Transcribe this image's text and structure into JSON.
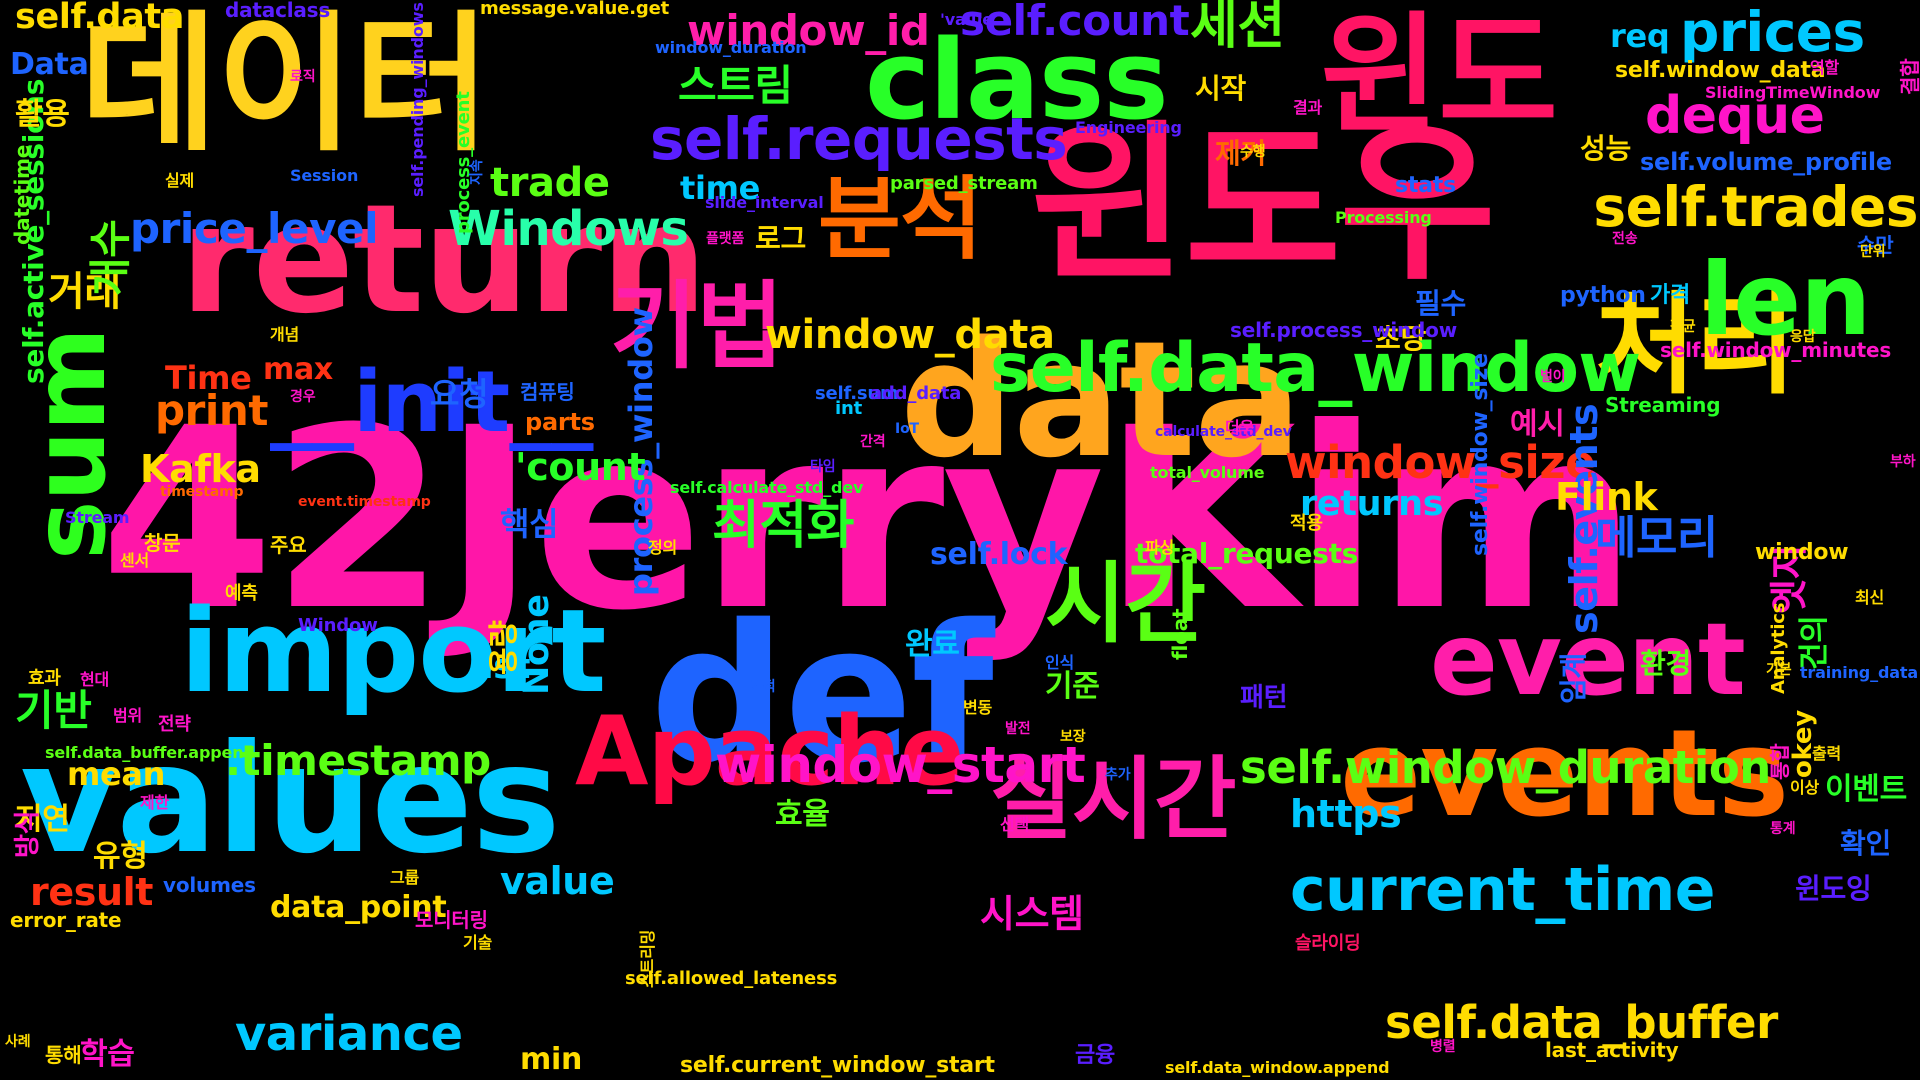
{
  "cloud": {
    "words": [
      {
        "text": "42JerryKim",
        "color": "#ff16a8"
      },
      {
        "text": "데이터",
        "color": "#ffd21e"
      },
      {
        "text": "윈도우",
        "color": "#ff1464"
      },
      {
        "text": "윈도",
        "color": "#ff1464"
      },
      {
        "text": "return",
        "color": "#ff2a6d"
      },
      {
        "text": "data",
        "color": "#ffa51e"
      },
      {
        "text": "def",
        "color": "#1e64ff"
      },
      {
        "text": "values",
        "color": "#00c8ff"
      },
      {
        "text": "events",
        "color": "#ff6a00"
      },
      {
        "text": "import",
        "color": "#00c8ff"
      },
      {
        "text": "class",
        "color": "#28ff28"
      },
      {
        "text": "sum",
        "color": "#2eff1e"
      },
      {
        "text": "처리",
        "color": "#ffdc00"
      },
      {
        "text": "Apache",
        "color": "#ff0a46"
      },
      {
        "text": "event",
        "color": "#ff1eaa"
      },
      {
        "text": "len",
        "color": "#28ff28"
      },
      {
        "text": "분석",
        "color": "#ff6a00"
      },
      {
        "text": "실시간",
        "color": "#ff1eaa"
      },
      {
        "text": "시간",
        "color": "#5aff14"
      },
      {
        "text": "기법",
        "color": "#ff1eaa"
      },
      {
        "text": "__init__",
        "color": "#1e3cff"
      },
      {
        "text": "self.data_window",
        "color": "#28ff28"
      },
      {
        "text": "self.requests",
        "color": "#5a1eff"
      },
      {
        "text": "current_time",
        "color": "#00c8ff"
      },
      {
        "text": "self.trades",
        "color": "#ffdc00"
      },
      {
        "text": "window_start",
        "color": "#ff14c8"
      },
      {
        "text": "self.data_buffer",
        "color": "#ffdc00"
      },
      {
        "text": "self.window_duration",
        "color": "#5aff14"
      },
      {
        "text": "prices",
        "color": "#00c8ff"
      },
      {
        "text": "deque",
        "color": "#ff14c8"
      },
      {
        "text": "variance",
        "color": "#00c8ff"
      },
      {
        "text": "Windows",
        "color": "#28ffaa"
      },
      {
        "text": "window_id",
        "color": "#ff1eaa"
      },
      {
        "text": "self.count",
        "color": "#5a1eff"
      },
      {
        "text": "세션",
        "color": "#5aff14"
      },
      {
        "text": "최적화",
        "color": "#28ff28"
      },
      {
        "text": "window_size",
        "color": "#ff3214"
      },
      {
        "text": "window_data",
        "color": "#ffdc00"
      },
      {
        "text": ".timestamp",
        "color": "#5aff14"
      },
      {
        "text": "price_level",
        "color": "#1e64ff"
      },
      {
        "text": "self.data",
        "color": "#ffdc00"
      },
      {
        "text": "메모리",
        "color": "#1e64ff"
      },
      {
        "text": "self.events",
        "color": "#1e64ff"
      },
      {
        "text": "process_window",
        "color": "#1e64ff"
      },
      {
        "text": "self.active_sessions",
        "color": "#28ff28"
      },
      {
        "text": "Kafka",
        "color": "#ffdc00"
      },
      {
        "text": "Flink",
        "color": "#ffdc00"
      },
      {
        "text": "print",
        "color": "#ff6a00"
      },
      {
        "text": "'count",
        "color": "#28ff28"
      },
      {
        "text": "trade",
        "color": "#5aff14"
      },
      {
        "text": "스트림",
        "color": "#28ff28"
      },
      {
        "text": "거래",
        "color": "#ffdc00"
      },
      {
        "text": "개수",
        "color": "#5aff14"
      },
      {
        "text": "기반",
        "color": "#28ff28"
      },
      {
        "text": "returns",
        "color": "#00c8ff"
      },
      {
        "text": "https",
        "color": "#00c8ff"
      },
      {
        "text": "result",
        "color": "#ff3214"
      },
      {
        "text": "value",
        "color": "#00c8ff"
      },
      {
        "text": "data_point",
        "color": "#ffdc00"
      },
      {
        "text": "시스템",
        "color": "#ff14c8"
      },
      {
        "text": "mean",
        "color": "#ffdc00"
      },
      {
        "text": "list",
        "color": "#00c8ff"
      },
      {
        "text": "None",
        "color": "#00c8ff"
      },
      {
        "text": "self.lock",
        "color": "#1e64ff"
      },
      {
        "text": "total_requests",
        "color": "#5aff14"
      },
      {
        "text": "time",
        "color": "#00c8ff"
      },
      {
        "text": "max",
        "color": "#ff3214"
      },
      {
        "text": "Time",
        "color": "#ff3214"
      },
      {
        "text": "req",
        "color": "#00c8ff"
      },
      {
        "text": "Data",
        "color": "#1e64ff"
      },
      {
        "text": "핵심",
        "color": "#1e64ff"
      },
      {
        "text": "요청",
        "color": "#1e64ff"
      },
      {
        "text": "완료",
        "color": "#00c8ff"
      },
      {
        "text": "기준",
        "color": "#5aff14"
      },
      {
        "text": "효율",
        "color": "#5aff14"
      },
      {
        "text": "학습",
        "color": "#ff14c8"
      },
      {
        "text": "지연",
        "color": "#ffdc00"
      },
      {
        "text": "유형",
        "color": "#ffdc00"
      },
      {
        "text": "min",
        "color": "#ffdc00"
      },
      {
        "text": "성능",
        "color": "#ffdc00"
      },
      {
        "text": "이벤트",
        "color": "#28ff28"
      },
      {
        "text": "확인",
        "color": "#1e64ff"
      },
      {
        "text": "윈도잉",
        "color": "#5a1eff"
      },
      {
        "text": "환경",
        "color": "#5aff14"
      },
      {
        "text": "엣지",
        "color": "#ff14c8"
      },
      {
        "text": "예시",
        "color": "#ff1eaa"
      },
      {
        "text": "필수",
        "color": "#1e64ff"
      },
      {
        "text": "초당",
        "color": "#ffdc00"
      },
      {
        "text": "시작",
        "color": "#ffdc00"
      },
      {
        "text": "제거",
        "color": "#ff6a00"
      },
      {
        "text": "로그",
        "color": "#ffdc00"
      },
      {
        "text": "활용",
        "color": "#ffdc00"
      },
      {
        "text": "okey",
        "color": "#ffdc00"
      },
      {
        "text": "window",
        "color": "#ffdc00"
      },
      {
        "text": "건의",
        "color": "#28ff28"
      },
      {
        "text": "임계",
        "color": "#1e64ff"
      },
      {
        "text": "용량",
        "color": "#ffdc00"
      },
      {
        "text": "패턴",
        "color": "#5a1eff"
      },
      {
        "text": "python",
        "color": "#1e64ff"
      },
      {
        "text": "가격",
        "color": "#00c8ff"
      },
      {
        "text": "self.volume_profile",
        "color": "#1e64ff"
      },
      {
        "text": "self.window_data",
        "color": "#ffdc00"
      },
      {
        "text": "self.window_minutes",
        "color": "#ff14c8"
      },
      {
        "text": "self.process_window",
        "color": "#5a1eff"
      },
      {
        "text": "self.window_size",
        "color": "#1e64ff"
      },
      {
        "text": "self.data_buffer.append",
        "color": "#5aff14"
      },
      {
        "text": "self.current_window_start",
        "color": "#ffdc00"
      },
      {
        "text": "self.data_window.append",
        "color": "#ffdc00"
      },
      {
        "text": "self.allowed_lateness",
        "color": "#ffdc00"
      },
      {
        "text": "self.calculate_std_dev",
        "color": "#28ff28"
      },
      {
        "text": "self.pending_windows",
        "color": "#5a1eff"
      },
      {
        "text": "self.sum",
        "color": "#1e64ff"
      },
      {
        "text": "total_volume",
        "color": "#5aff14"
      },
      {
        "text": "last_activity",
        "color": "#ffdc00"
      },
      {
        "text": "error_rate",
        "color": "#ffdc00"
      },
      {
        "text": "volumes",
        "color": "#1e64ff"
      },
      {
        "text": "parts",
        "color": "#ff6a00"
      },
      {
        "text": "float",
        "color": "#5aff14"
      },
      {
        "text": "int",
        "color": "#00c8ff"
      },
      {
        "text": "add_data",
        "color": "#5a1eff"
      },
      {
        "text": "datetime",
        "color": "#5aff14"
      },
      {
        "text": "dataclass",
        "color": "#5a1eff"
      },
      {
        "text": "message.value.get",
        "color": "#ffdc00"
      },
      {
        "text": "window_duration",
        "color": "#1e64ff"
      },
      {
        "text": "SlidingTimeWindow",
        "color": "#ff14c8"
      },
      {
        "text": "Engineering",
        "color": "#5a1eff"
      },
      {
        "text": "Session",
        "color": "#1e64ff"
      },
      {
        "text": "process_event",
        "color": "#28ff28"
      },
      {
        "text": "parsed_stream",
        "color": "#5aff14"
      },
      {
        "text": "slide_interval",
        "color": "#5a1eff"
      },
      {
        "text": "Processing",
        "color": "#5aff14"
      },
      {
        "text": "calculate_std_dev",
        "color": "#5a1eff"
      },
      {
        "text": "event.timestamp",
        "color": "#ff3214"
      },
      {
        "text": "Stream",
        "color": "#5a1eff"
      },
      {
        "text": "Window",
        "color": "#5a1eff"
      },
      {
        "text": "Streaming",
        "color": "#28ff28"
      },
      {
        "text": "training_data",
        "color": "#1e64ff"
      },
      {
        "text": "Analytics",
        "color": "#ffdc00"
      },
      {
        "text": "timestamp",
        "color": "#ff6a00"
      },
      {
        "text": "IoT",
        "color": "#1e64ff"
      },
      {
        "text": "'value",
        "color": "#5a1eff"
      },
      {
        "text": "stats",
        "color": "#1e64ff"
      },
      {
        "text": "수만",
        "color": "#1e64ff"
      },
      {
        "text": "통해",
        "color": "#ffdc00"
      },
      {
        "text": "결과",
        "color": "#ff14c8"
      },
      {
        "text": "적용",
        "color": "#ffdc00"
      },
      {
        "text": "응답",
        "color": "#ffdc00"
      },
      {
        "text": "실제",
        "color": "#ffdc00"
      },
      {
        "text": "수행",
        "color": "#ffdc00"
      },
      {
        "text": "역할",
        "color": "#ff14c8"
      },
      {
        "text": "개념",
        "color": "#ffdc00"
      },
      {
        "text": "경우",
        "color": "#ff14c8"
      },
      {
        "text": "컴퓨팅",
        "color": "#1e64ff"
      },
      {
        "text": "파싱",
        "color": "#ffdc00"
      },
      {
        "text": "더욱",
        "color": "#ff14c8"
      },
      {
        "text": "간격",
        "color": "#ff14c8"
      },
      {
        "text": "타임",
        "color": "#5a1eff"
      },
      {
        "text": "부하",
        "color": "#ff14c8"
      },
      {
        "text": "정의",
        "color": "#ffdc00"
      },
      {
        "text": "창문",
        "color": "#ffdc00"
      },
      {
        "text": "주요",
        "color": "#ffdc00"
      },
      {
        "text": "센서",
        "color": "#ffdc00"
      },
      {
        "text": "예측",
        "color": "#ffdc00"
      },
      {
        "text": "효과",
        "color": "#ffdc00"
      },
      {
        "text": "현대",
        "color": "#ff14c8"
      },
      {
        "text": "범위",
        "color": "#ff14c8"
      },
      {
        "text": "전략",
        "color": "#ff14c8"
      },
      {
        "text": "방식",
        "color": "#ff14c8"
      },
      {
        "text": "제한",
        "color": "#ff14c8"
      },
      {
        "text": "인식",
        "color": "#1e64ff"
      },
      {
        "text": "기적",
        "color": "#1e64ff"
      },
      {
        "text": "발전",
        "color": "#ff14c8"
      },
      {
        "text": "보장",
        "color": "#ffdc00"
      },
      {
        "text": "추가",
        "color": "#1e64ff"
      },
      {
        "text": "선택",
        "color": "#ff14c8"
      },
      {
        "text": "그룹",
        "color": "#ffdc00"
      },
      {
        "text": "모니터링",
        "color": "#ff14c8"
      },
      {
        "text": "기술",
        "color": "#ffdc00"
      },
      {
        "text": "스트리밍",
        "color": "#ffdc00"
      },
      {
        "text": "슬라이딩",
        "color": "#ff1464"
      },
      {
        "text": "금융",
        "color": "#5a1eff"
      },
      {
        "text": "병렬",
        "color": "#ff14c8"
      },
      {
        "text": "사례",
        "color": "#ffdc00"
      },
      {
        "text": "통합",
        "color": "#ff14c8"
      },
      {
        "text": "출력",
        "color": "#ffdc00"
      },
      {
        "text": "이상",
        "color": "#ffdc00"
      },
      {
        "text": "통계",
        "color": "#ff14c8"
      },
      {
        "text": "기본",
        "color": "#ffdc00"
      },
      {
        "text": "최신",
        "color": "#ffdc00"
      },
      {
        "text": "단위",
        "color": "#ffdc00"
      },
      {
        "text": "평균",
        "color": "#ffdc00"
      },
      {
        "text": "전송",
        "color": "#ff14c8"
      },
      {
        "text": "플랫폼",
        "color": "#ff14c8"
      },
      {
        "text": "지속",
        "color": "#1e64ff"
      },
      {
        "text": "로직",
        "color": "#ff14c8"
      },
      {
        "text": "결합",
        "color": "#ff14c8"
      },
      {
        "text": "변동",
        "color": "#ffdc00"
      },
      {
        "text": "벌이",
        "color": "#ff14c8"
      }
    ]
  }
}
